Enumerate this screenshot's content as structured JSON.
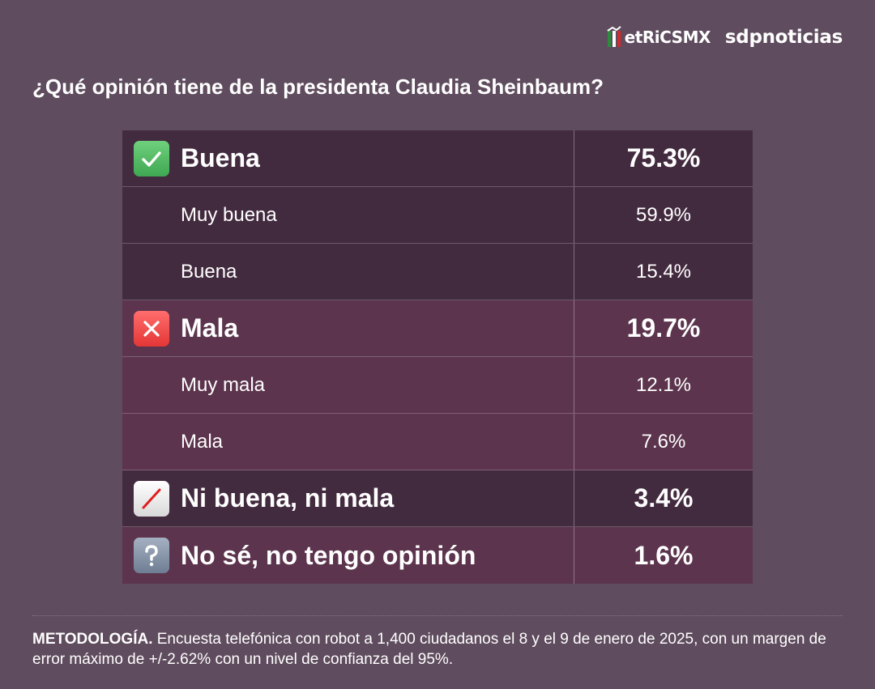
{
  "header": {
    "brand_metrics": "etRiCSMX",
    "brand_sdp": "sdpnoticias"
  },
  "question": "¿Qué opinión tiene de la presidenta Claudia Sheinbaum?",
  "colors": {
    "background": "#5f4c5e",
    "row_dark": "#432b3f",
    "row_mid": "#5c344d",
    "check_green": "#3fa752",
    "cross_red": "#e53636"
  },
  "chart_data": {
    "type": "table",
    "title": "¿Qué opinión tiene de la presidenta Claudia Sheinbaum?",
    "columns": [
      "label",
      "percent"
    ],
    "rows": [
      {
        "label": "Buena",
        "value": "75.3%",
        "number": 75.3,
        "level": "main",
        "icon": "check-mark-icon",
        "shade": "dark"
      },
      {
        "label": "Muy buena",
        "value": "59.9%",
        "number": 59.9,
        "level": "sub",
        "shade": "dark"
      },
      {
        "label": "Buena",
        "value": "15.4%",
        "number": 15.4,
        "level": "sub",
        "shade": "dark"
      },
      {
        "label": "Mala",
        "value": "19.7%",
        "number": 19.7,
        "level": "main",
        "icon": "cross-mark-icon",
        "shade": "mid"
      },
      {
        "label": "Muy mala",
        "value": "12.1%",
        "number": 12.1,
        "level": "sub",
        "shade": "mid"
      },
      {
        "label": "Mala",
        "value": "7.6%",
        "number": 7.6,
        "level": "sub",
        "shade": "mid"
      },
      {
        "label": "Ni buena, ni mala",
        "value": "3.4%",
        "number": 3.4,
        "level": "main",
        "icon": "slash-icon",
        "shade": "dark"
      },
      {
        "label": "No sé, no tengo opinión",
        "value": "1.6%",
        "number": 1.6,
        "level": "main",
        "icon": "question-mark-icon",
        "shade": "mid"
      }
    ]
  },
  "footer": {
    "method_label": "METODOLOGÍA.",
    "method_text": " Encuesta telefónica con robot a 1,400 ciudadanos el 8 y el 9 de enero de 2025, con un margen de error máximo de +/-2.62% con un nivel de confianza del 95%."
  }
}
